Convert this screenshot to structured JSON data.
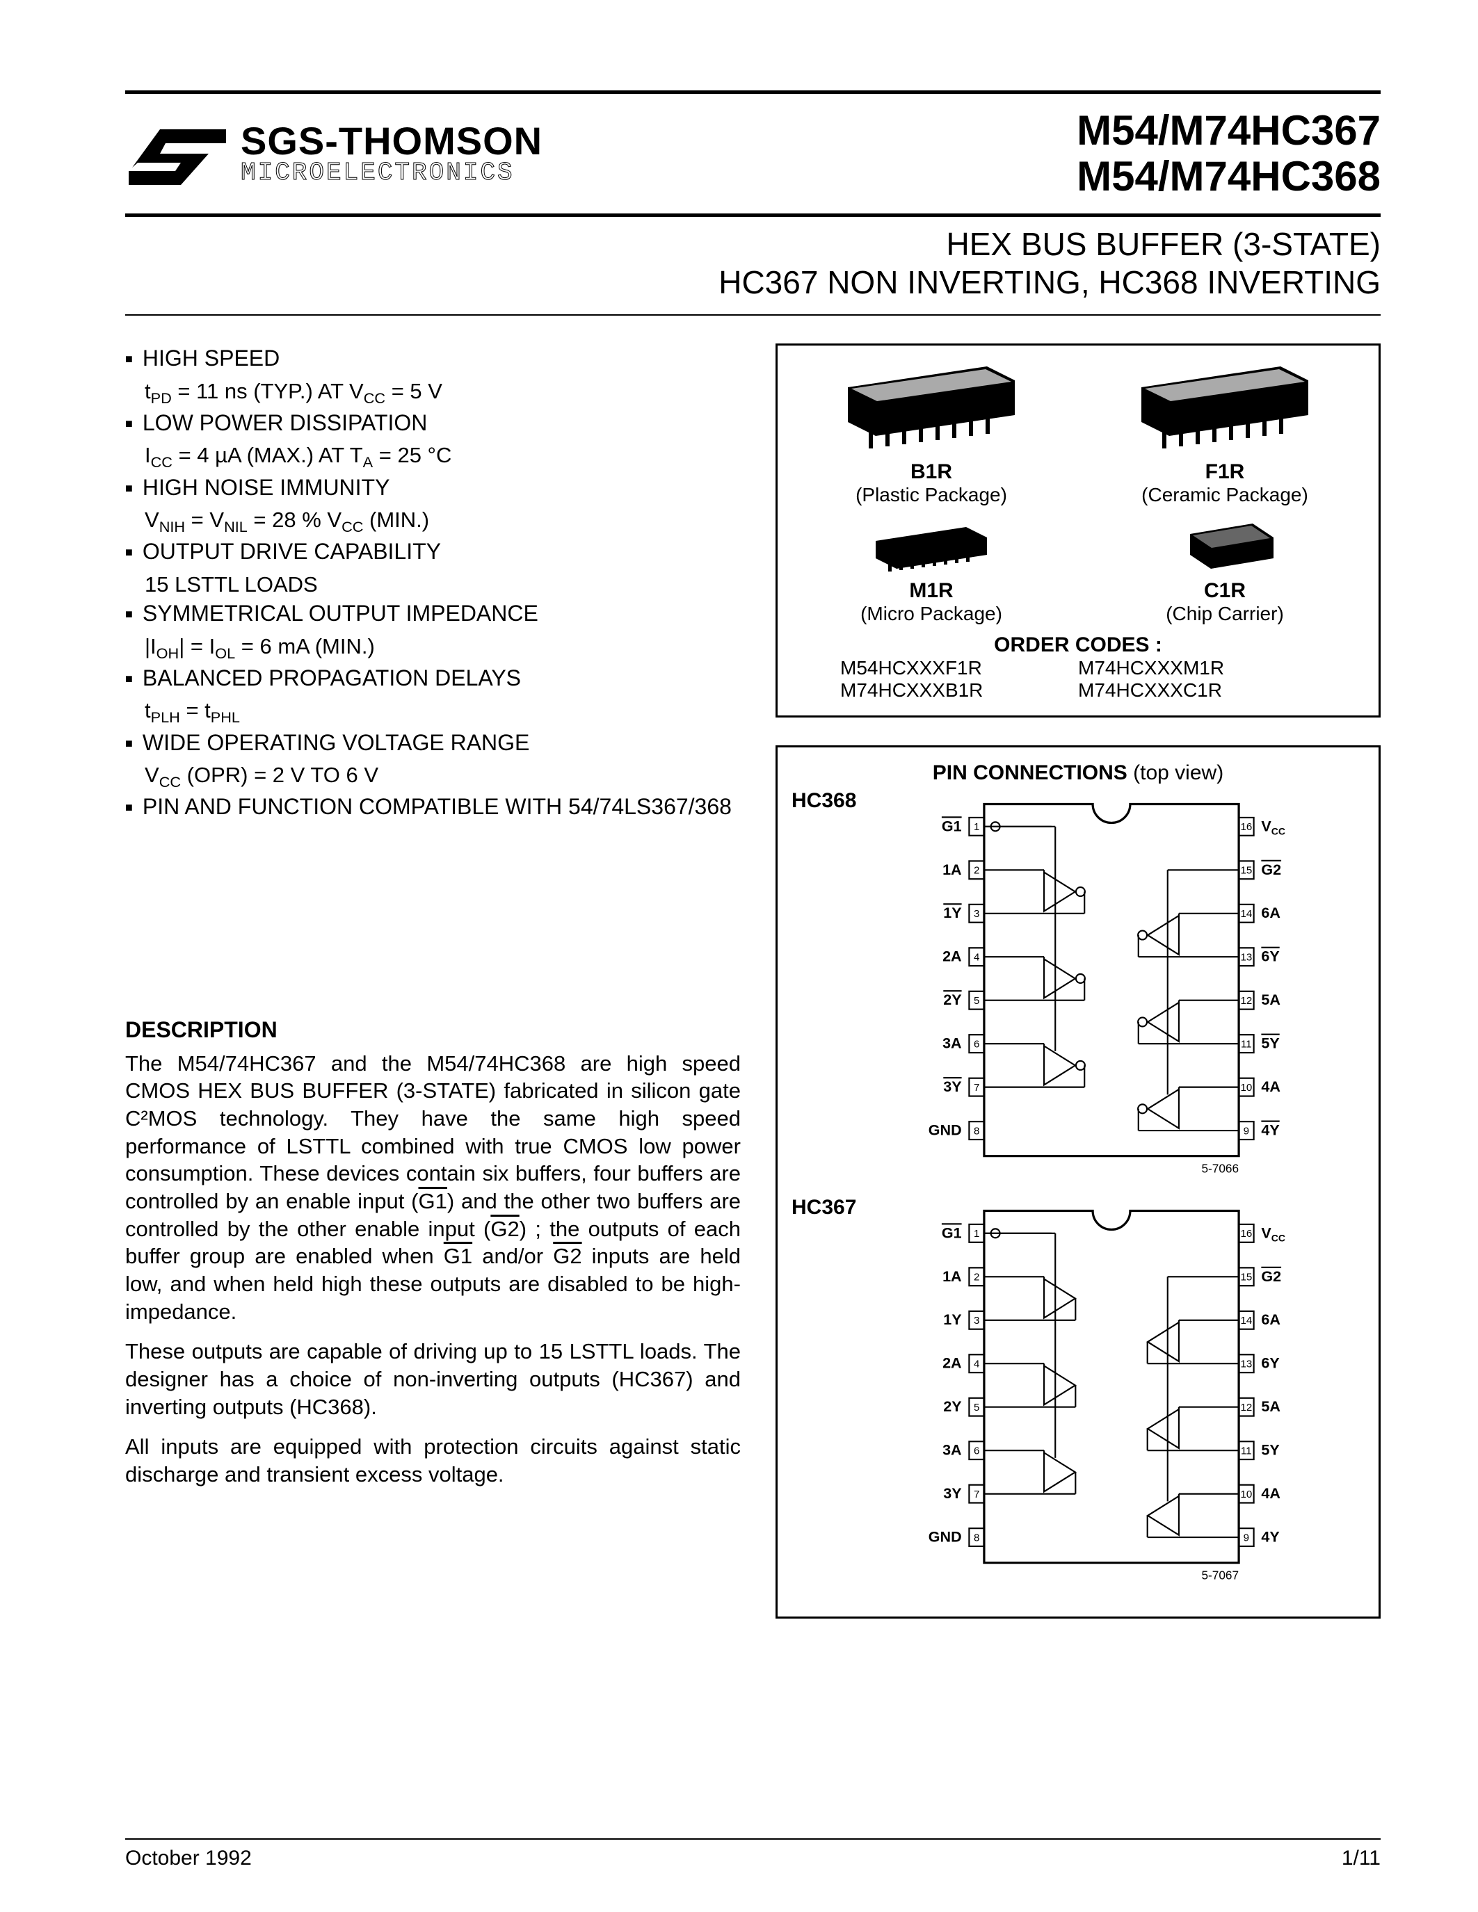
{
  "brand": {
    "main": "SGS-THOMSON",
    "sub": "MICROELECTRONICS"
  },
  "part_numbers": [
    "M54/M74HC367",
    "M54/M74HC368"
  ],
  "subtitle_line1": "HEX BUS BUFFER (3-STATE)",
  "subtitle_line2": "HC367 NON INVERTING, HC368 INVERTING",
  "features": [
    {
      "title": "HIGH SPEED",
      "sub_html": "t<sub>PD</sub> = 11 ns (TYP.) AT V<sub>CC</sub> = 5 V"
    },
    {
      "title": "LOW POWER DISSIPATION",
      "sub_html": "I<sub>CC</sub> = 4 µA (MAX.) AT T<sub>A</sub> = 25 °C"
    },
    {
      "title": "HIGH NOISE IMMUNITY",
      "sub_html": "V<sub>NIH</sub> = V<sub>NIL</sub> = 28 % V<sub>CC</sub> (MIN.)"
    },
    {
      "title": "OUTPUT DRIVE CAPABILITY",
      "sub": "15 LSTTL LOADS"
    },
    {
      "title": "SYMMETRICAL OUTPUT IMPEDANCE",
      "sub_html": "|I<sub>OH</sub>| = I<sub>OL</sub> = 6 mA (MIN.)"
    },
    {
      "title": "BALANCED PROPAGATION DELAYS",
      "sub_html": "t<sub>PLH</sub> = t<sub>PHL</sub>"
    },
    {
      "title": "WIDE OPERATING VOLTAGE RANGE",
      "sub_html": "V<sub>CC</sub> (OPR) = 2 V TO 6 V"
    },
    {
      "title": "PIN AND FUNCTION COMPATIBLE WITH 54/74LS367/368"
    }
  ],
  "packages": [
    {
      "code": "B1R",
      "name": "(Plastic Package)",
      "svg": "dip"
    },
    {
      "code": "F1R",
      "name": "(Ceramic Package)",
      "svg": "dip"
    },
    {
      "code": "M1R",
      "name": "(Micro Package)",
      "svg": "soic"
    },
    {
      "code": "C1R",
      "name": "(Chip Carrier)",
      "svg": "plcc"
    }
  ],
  "order": {
    "heading": "ORDER CODES :",
    "codes": [
      "M54HCXXXF1R",
      "M74HCXXXM1R",
      "M74HCXXXB1R",
      "M74HCXXXC1R"
    ]
  },
  "pinconn": {
    "heading": "PIN CONNECTIONS",
    "heading_suffix": "(top view)",
    "devices": [
      {
        "name": "HC368",
        "inverting": true,
        "left": [
          "G1",
          "1A",
          "1Y",
          "2A",
          "2Y",
          "3A",
          "3Y",
          "GND"
        ],
        "right": [
          "VCC",
          "G2",
          "6A",
          "6Y",
          "5A",
          "5Y",
          "4A",
          "4Y"
        ],
        "footer": "5-7066"
      },
      {
        "name": "HC367",
        "inverting": false,
        "left": [
          "G1",
          "1A",
          "1Y",
          "2A",
          "2Y",
          "3A",
          "3Y",
          "GND"
        ],
        "right": [
          "VCC",
          "G2",
          "6A",
          "6Y",
          "5A",
          "5Y",
          "4A",
          "4Y"
        ],
        "footer": "5-7067"
      }
    ]
  },
  "description": {
    "heading": "DESCRIPTION",
    "paras": [
      "The M54/74HC367 and the M54/74HC368 are high speed CMOS HEX BUS BUFFER (3-STATE) fabricated in silicon gate C²MOS technology. They have the same high speed performance of LSTTL combined with true CMOS low power consumption. These devices contain six buffers, four buffers are controlled by an enable input (<span class=\"ov\">G1</span>) and the other two buffers are controlled by the other enable input (<span class=\"ov\">G2</span>) ; the outputs of each buffer group are enabled when <span class=\"ov\">G1</span> and/or <span class=\"ov\">G2</span> inputs are held low, and when held high these outputs are disabled to be high-impedance.",
      "These outputs are capable of driving up to 15 LSTTL loads. The designer has a choice of non-inverting outputs (HC367) and inverting outputs (HC368).",
      "All inputs are equipped with protection circuits against static discharge and transient excess voltage."
    ]
  },
  "footer": {
    "date": "October 1992",
    "page": "1/11"
  },
  "colors": {
    "ink": "#000000",
    "bg": "#ffffff"
  }
}
